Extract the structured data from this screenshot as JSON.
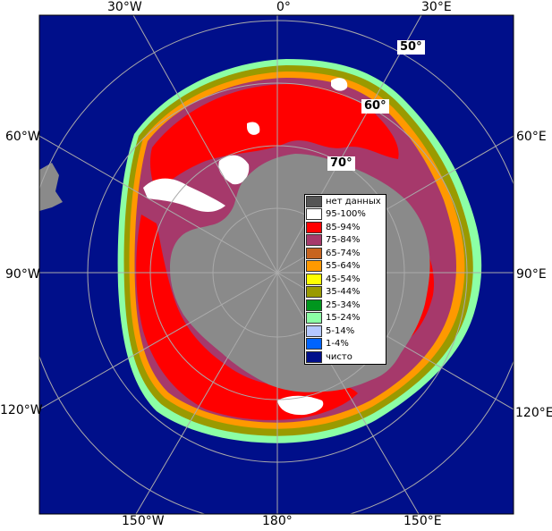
{
  "map": {
    "colors": {
      "ocean": "#000f8a",
      "land": "#8a8a8a",
      "grid": "#aaaaaa",
      "ice_95": "#ffffff",
      "ice_85": "#ff0000",
      "ice_75": "#a6396b",
      "ice_65": "#c8641e",
      "ice_55": "#ff9900",
      "ice_45": "#ffff00",
      "ice_35": "#9a9a00",
      "ice_25": "#00961e",
      "ice_15": "#8cffa5",
      "ice_5": "#b4c8ff",
      "ice_1": "#0064ff"
    },
    "longitude_labels": [
      {
        "id": "30w-top",
        "text": "30°W"
      },
      {
        "id": "0-top",
        "text": "0°"
      },
      {
        "id": "30e-top",
        "text": "30°E"
      },
      {
        "id": "60w",
        "text": "60°W"
      },
      {
        "id": "60e",
        "text": "60°E"
      },
      {
        "id": "90w",
        "text": "90°W"
      },
      {
        "id": "90e",
        "text": "90°E"
      },
      {
        "id": "120w",
        "text": "120°W"
      },
      {
        "id": "120e",
        "text": "120°E"
      },
      {
        "id": "150w",
        "text": "150°W"
      },
      {
        "id": "180",
        "text": "180°"
      },
      {
        "id": "150e",
        "text": "150°E"
      }
    ],
    "latitude_labels": [
      {
        "id": "50",
        "text": "50°"
      },
      {
        "id": "60",
        "text": "60°"
      },
      {
        "id": "70",
        "text": "70°"
      }
    ]
  },
  "legend": {
    "items": [
      {
        "label": "нет данных",
        "color": "#555555"
      },
      {
        "label": "95-100%",
        "color": "#ffffff"
      },
      {
        "label": "85-94%",
        "color": "#ff0000"
      },
      {
        "label": "75-84%",
        "color": "#a6396b"
      },
      {
        "label": "65-74%",
        "color": "#c8641e"
      },
      {
        "label": "55-64%",
        "color": "#ff9900"
      },
      {
        "label": "45-54%",
        "color": "#ffff00"
      },
      {
        "label": "35-44%",
        "color": "#9a9a00"
      },
      {
        "label": "25-34%",
        "color": "#00961e"
      },
      {
        "label": "15-24%",
        "color": "#8cffa5"
      },
      {
        "label": "5-14%",
        "color": "#b4c8ff"
      },
      {
        "label": "1-4%",
        "color": "#0064ff"
      },
      {
        "label": "чисто",
        "color": "#000f8a"
      }
    ]
  }
}
